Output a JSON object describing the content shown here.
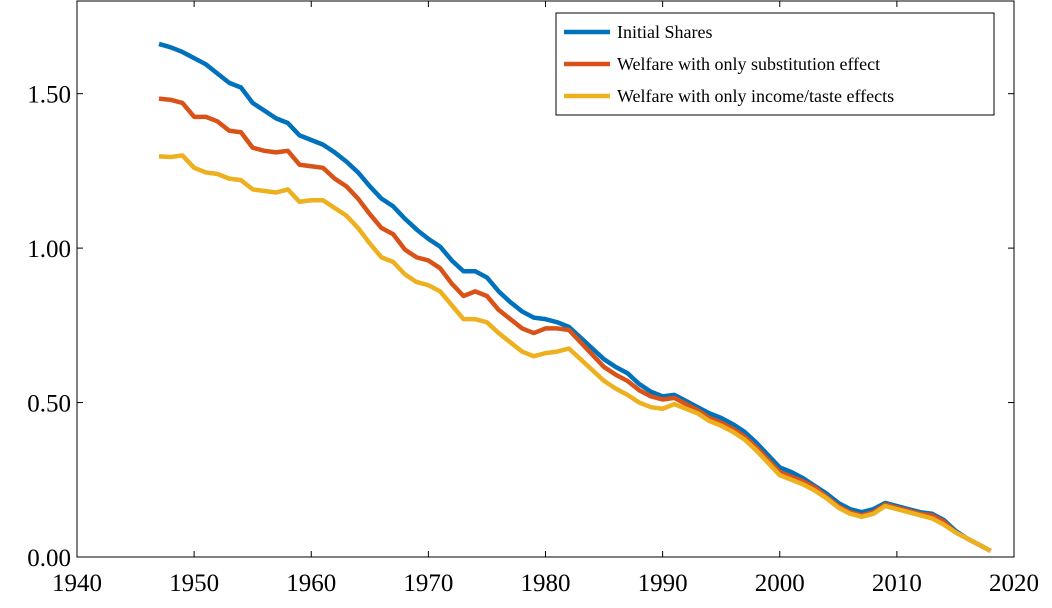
{
  "chart_data": {
    "type": "line",
    "x": [
      1947,
      1948,
      1949,
      1950,
      1951,
      1952,
      1953,
      1954,
      1955,
      1956,
      1957,
      1958,
      1959,
      1960,
      1961,
      1962,
      1963,
      1964,
      1965,
      1966,
      1967,
      1968,
      1969,
      1970,
      1971,
      1972,
      1973,
      1974,
      1975,
      1976,
      1977,
      1978,
      1979,
      1980,
      1981,
      1982,
      1983,
      1984,
      1985,
      1986,
      1987,
      1988,
      1989,
      1990,
      1991,
      1992,
      1993,
      1994,
      1995,
      1996,
      1997,
      1998,
      1999,
      2000,
      2001,
      2002,
      2003,
      2004,
      2005,
      2006,
      2007,
      2008,
      2009,
      2010,
      2011,
      2012,
      2013,
      2014,
      2015,
      2016,
      2017,
      2018
    ],
    "series": [
      {
        "name": "Initial Shares",
        "color": "#0072bd",
        "values": [
          1.661,
          1.65,
          1.635,
          1.615,
          1.595,
          1.565,
          1.535,
          1.52,
          1.47,
          1.445,
          1.42,
          1.405,
          1.365,
          1.35,
          1.335,
          1.31,
          1.28,
          1.245,
          1.2,
          1.16,
          1.135,
          1.095,
          1.06,
          1.03,
          1.005,
          0.96,
          0.925,
          0.925,
          0.905,
          0.86,
          0.825,
          0.795,
          0.775,
          0.77,
          0.76,
          0.745,
          0.71,
          0.675,
          0.64,
          0.615,
          0.595,
          0.56,
          0.535,
          0.52,
          0.525,
          0.505,
          0.485,
          0.465,
          0.45,
          0.43,
          0.405,
          0.37,
          0.33,
          0.29,
          0.275,
          0.255,
          0.23,
          0.205,
          0.175,
          0.155,
          0.145,
          0.155,
          0.175,
          0.165,
          0.155,
          0.145,
          0.14,
          0.12,
          0.085,
          0.06,
          0.04,
          0.02
        ]
      },
      {
        "name": "Welfare with only substitution effect",
        "color": "#d95319",
        "values": [
          1.484,
          1.48,
          1.47,
          1.425,
          1.425,
          1.41,
          1.38,
          1.375,
          1.325,
          1.315,
          1.31,
          1.315,
          1.27,
          1.265,
          1.26,
          1.225,
          1.2,
          1.16,
          1.11,
          1.065,
          1.045,
          0.995,
          0.97,
          0.96,
          0.935,
          0.885,
          0.845,
          0.86,
          0.845,
          0.8,
          0.77,
          0.74,
          0.725,
          0.74,
          0.74,
          0.735,
          0.695,
          0.655,
          0.615,
          0.59,
          0.57,
          0.54,
          0.52,
          0.51,
          0.515,
          0.495,
          0.475,
          0.45,
          0.435,
          0.415,
          0.39,
          0.355,
          0.315,
          0.275,
          0.26,
          0.245,
          0.225,
          0.195,
          0.165,
          0.145,
          0.135,
          0.145,
          0.17,
          0.16,
          0.15,
          0.14,
          0.135,
          0.115,
          0.08,
          0.06,
          0.04,
          0.02
        ]
      },
      {
        "name": "Welfare with only income/taste effects",
        "color": "#edb120",
        "values": [
          1.297,
          1.295,
          1.3,
          1.26,
          1.245,
          1.24,
          1.225,
          1.22,
          1.19,
          1.185,
          1.18,
          1.19,
          1.15,
          1.155,
          1.155,
          1.13,
          1.105,
          1.065,
          1.015,
          0.97,
          0.955,
          0.915,
          0.89,
          0.88,
          0.86,
          0.815,
          0.77,
          0.77,
          0.76,
          0.725,
          0.695,
          0.665,
          0.65,
          0.66,
          0.665,
          0.675,
          0.64,
          0.605,
          0.57,
          0.545,
          0.525,
          0.5,
          0.485,
          0.48,
          0.495,
          0.48,
          0.465,
          0.44,
          0.425,
          0.405,
          0.38,
          0.345,
          0.305,
          0.265,
          0.25,
          0.235,
          0.215,
          0.19,
          0.16,
          0.14,
          0.13,
          0.14,
          0.165,
          0.155,
          0.145,
          0.135,
          0.125,
          0.105,
          0.08,
          0.06,
          0.04,
          0.02
        ]
      }
    ],
    "xlim": [
      1940,
      2020
    ],
    "xticks": [
      1940,
      1950,
      1960,
      1970,
      1980,
      1990,
      2000,
      2010,
      2020
    ],
    "ylim": [
      0,
      1.8
    ],
    "yticks": [
      {
        "value": 0,
        "label": "0.00"
      },
      {
        "value": 0.5,
        "label": "0.50"
      },
      {
        "value": 1,
        "label": "1.00"
      },
      {
        "value": 1.5,
        "label": "1.50"
      }
    ],
    "legend": "upper right"
  }
}
